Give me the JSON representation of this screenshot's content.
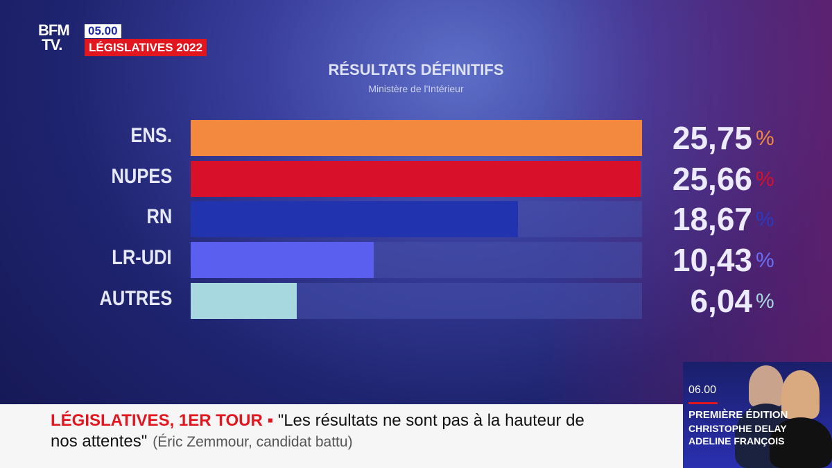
{
  "channel": {
    "logo": "BFM TV.",
    "time": "05.00",
    "program": "LÉGISLATIVES 2022"
  },
  "header": {
    "title": "RÉSULTATS DÉFINITIFS",
    "source": "Ministère de l'Intérieur"
  },
  "results": [
    {
      "party": "ENS.",
      "value": "25,75",
      "num": 25.75,
      "color": "#f2893e",
      "pct_color": "#f2893e"
    },
    {
      "party": "NUPES",
      "value": "25,66",
      "num": 25.66,
      "color": "#d8102a",
      "pct_color": "#d8102a"
    },
    {
      "party": "RN",
      "value": "18,67",
      "num": 18.67,
      "color": "#2233b0",
      "pct_color": "#2b3bc0"
    },
    {
      "party": "LR-UDI",
      "value": "10,43",
      "num": 10.43,
      "color": "#5a5ff0",
      "pct_color": "#6a6ff5"
    },
    {
      "party": "AUTRES",
      "value": "6,04",
      "num": 6.04,
      "color": "#a8d8df",
      "pct_color": "#a8d8df"
    }
  ],
  "percent_sign": "%",
  "ticker": {
    "tag": "LÉGISLATIVES, 1ER TOUR",
    "bullet": "▪",
    "quote_1": "\"Les résultats ne sont pas à la hauteur de",
    "quote_2": "nos attentes\"",
    "attribution": "(Éric Zemmour, candidat battu)"
  },
  "promo": {
    "time": "06.00",
    "show": "PREMIÈRE ÉDITION",
    "host_1": "CHRISTOPHE DELAY",
    "host_2": "ADELINE FRANÇOIS"
  }
}
